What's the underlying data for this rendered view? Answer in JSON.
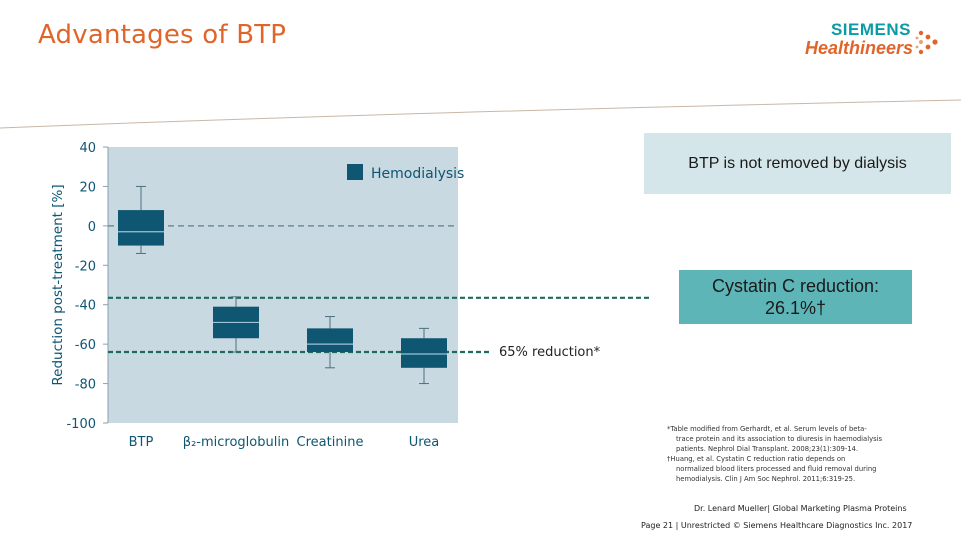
{
  "slide": {
    "title": "Advantages of BTP",
    "logo": {
      "line1": "SIEMENS",
      "line2": "Healthineers"
    }
  },
  "callouts": {
    "not_removed": "BTP is not removed by dialysis",
    "cystatin": "Cystatin C reduction: 26.1%†",
    "reduction_label": "65% reduction*"
  },
  "footnotes": [
    "*Table modified from Gerhardt, et al. Serum levels of beta-",
    "trace protein and its association to diuresis in haemodialysis",
    "patients. Nephrol Dial Transplant. 2008;23(1):309-14.",
    "†Huang, et al. Cystatin C reduction ratio depends on",
    "normalized blood liters processed and fluid removal during",
    "hemodialysis. Clin J Am Soc Nephrol. 2011;6:319-25."
  ],
  "footer": {
    "presenter": "Dr. Lenard Mueller| Global Marketing Plasma Proteins",
    "page": "Page 21 | Unrestricted © Siemens Healthcare Diagnostics Inc. 2017"
  },
  "colors": {
    "title": "#e0652a",
    "box_fill": "#0e5672",
    "plot_bg": "#c9d9e1",
    "reference_line": "#1e6a5e",
    "callout_light": "#d4e6ea",
    "callout_teal": "#5db5b8"
  },
  "chart_data": {
    "type": "box",
    "ylabel": "Reduction post-treatment [%]",
    "ylim": [
      -100,
      40
    ],
    "yticks": [
      40,
      20,
      0,
      -20,
      -40,
      -60,
      -80,
      -100
    ],
    "categories": [
      "BTP",
      "β₂-microglobulin",
      "Creatinine",
      "Urea"
    ],
    "legend": {
      "label": "Hemodialysis",
      "position": "top-right"
    },
    "series": [
      {
        "name": "Hemodialysis",
        "boxes": [
          {
            "min": -14,
            "q1": -10,
            "median": -3,
            "q3": 8,
            "max": 20
          },
          {
            "min": -64,
            "q1": -57,
            "median": -49,
            "q3": -41,
            "max": -36
          },
          {
            "min": -72,
            "q1": -64,
            "median": -60,
            "q3": -52,
            "max": -46
          },
          {
            "min": -80,
            "q1": -72,
            "median": -65,
            "q3": -57,
            "max": -52
          }
        ]
      }
    ],
    "reference_lines": [
      {
        "y": 0,
        "style": "dashed",
        "color": "#6e8f9a"
      },
      {
        "y": -36.5,
        "style": "dashed",
        "color": "#1e6a5e"
      },
      {
        "y": -64,
        "style": "dashed",
        "color": "#1e6a5e"
      }
    ]
  }
}
